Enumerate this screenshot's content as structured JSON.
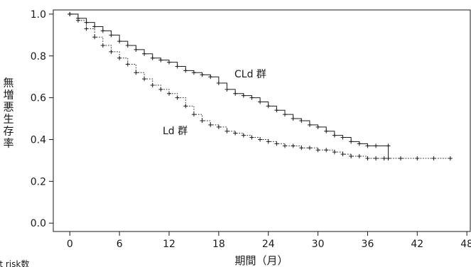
{
  "chart_data": {
    "type": "line",
    "xlabel": "期間（月）",
    "ylabel": "無増悪生存率",
    "xlim": [
      -2,
      48.5
    ],
    "ylim": [
      -0.04,
      1.02
    ],
    "xticks": [
      0,
      6,
      12,
      18,
      24,
      30,
      36,
      42,
      48
    ],
    "yticks": [
      0.0,
      0.2,
      0.4,
      0.6,
      0.8,
      1.0
    ],
    "xtick_labels": [
      "0",
      "6",
      "12",
      "18",
      "24",
      "30",
      "36",
      "42",
      "48"
    ],
    "ytick_labels": [
      "0.0",
      "0.2",
      "0.4",
      "0.6",
      "0.8",
      "1.0"
    ],
    "footer": "at risk数",
    "series": [
      {
        "name": "CLd 群",
        "line_style": "solid",
        "color": "#1a1a1a",
        "x": [
          0,
          1,
          2,
          3,
          4,
          5,
          6,
          7,
          8,
          9,
          10,
          11,
          12,
          13,
          14,
          15,
          16,
          17,
          18,
          19,
          20,
          21,
          22,
          23,
          24,
          25,
          26,
          27,
          28,
          29,
          30,
          31,
          32,
          33,
          34,
          35,
          36,
          37,
          38.5,
          38.5
        ],
        "y": [
          1.0,
          0.98,
          0.96,
          0.94,
          0.92,
          0.9,
          0.87,
          0.85,
          0.83,
          0.81,
          0.79,
          0.78,
          0.77,
          0.75,
          0.73,
          0.72,
          0.71,
          0.7,
          0.67,
          0.64,
          0.62,
          0.61,
          0.6,
          0.58,
          0.56,
          0.54,
          0.52,
          0.5,
          0.49,
          0.47,
          0.46,
          0.44,
          0.42,
          0.41,
          0.39,
          0.38,
          0.37,
          0.37,
          0.37,
          0.31
        ]
      },
      {
        "name": "Ld 群",
        "line_style": "dotted",
        "color": "#1a1a1a",
        "x": [
          0,
          1,
          2,
          3,
          4,
          5,
          6,
          7,
          8,
          9,
          10,
          11,
          12,
          13,
          14,
          15,
          16,
          17,
          18,
          19,
          20,
          21,
          22,
          23,
          24,
          25,
          26,
          27,
          28,
          29,
          30,
          31,
          32,
          33,
          34,
          35,
          36,
          37,
          38,
          40,
          42,
          44,
          46
        ],
        "y": [
          1.0,
          0.97,
          0.93,
          0.89,
          0.85,
          0.82,
          0.79,
          0.76,
          0.72,
          0.69,
          0.66,
          0.64,
          0.62,
          0.6,
          0.56,
          0.52,
          0.49,
          0.47,
          0.46,
          0.44,
          0.43,
          0.42,
          0.41,
          0.4,
          0.39,
          0.38,
          0.37,
          0.37,
          0.36,
          0.36,
          0.35,
          0.35,
          0.34,
          0.33,
          0.32,
          0.32,
          0.31,
          0.31,
          0.31,
          0.31,
          0.31,
          0.31,
          0.31
        ]
      }
    ]
  }
}
